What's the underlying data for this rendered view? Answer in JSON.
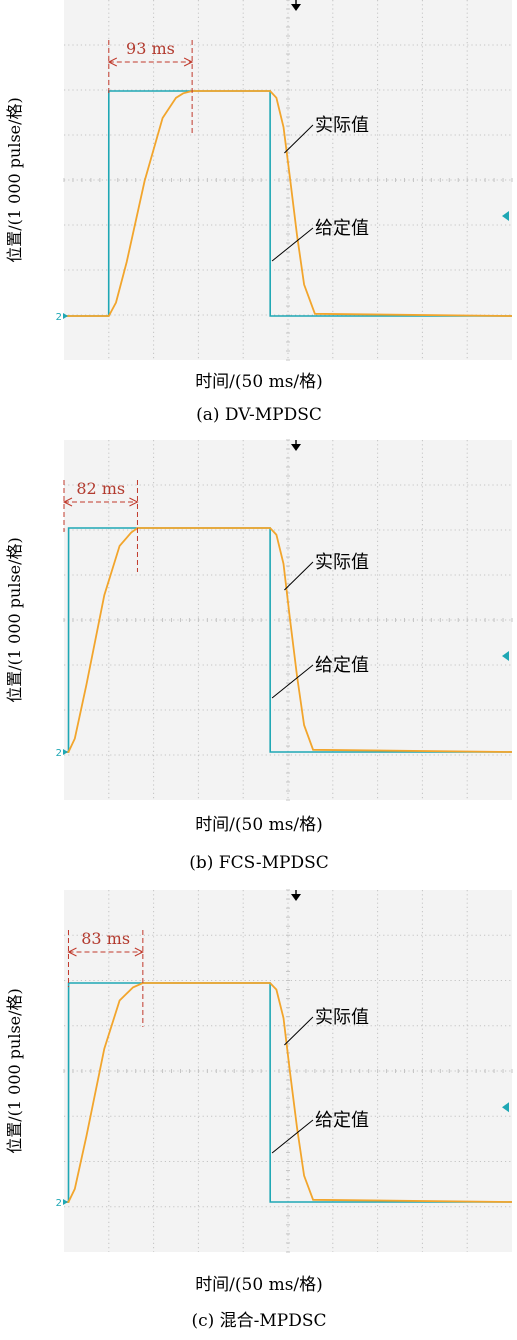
{
  "chart_data": [
    {
      "type": "line",
      "caption": "(a) DV-MPDSC",
      "ylabel": "位置/(1 000 pulse/格)",
      "xlabel": "时间/(50 ms/格)",
      "grid": true,
      "xlim": [
        0,
        500
      ],
      "measurement": {
        "label": "93 ms",
        "start_ms": 50,
        "end_ms": 143
      },
      "series": [
        {
          "name": "给定值",
          "x": [
            0,
            49.9,
            50,
            230,
            230.1,
            500
          ],
          "y": [
            0,
            0,
            5,
            5,
            0,
            0
          ]
        },
        {
          "name": "实际值",
          "x": [
            0,
            50,
            58,
            70,
            90,
            110,
            125,
            133,
            143,
            230,
            237,
            245,
            252,
            260,
            268,
            280,
            500
          ],
          "y": [
            0,
            0,
            0.3,
            1.2,
            3.0,
            4.4,
            4.85,
            4.95,
            5.0,
            5.0,
            4.85,
            4.2,
            3.1,
            1.8,
            0.7,
            0.05,
            0
          ]
        }
      ],
      "annotations": [
        "实际值",
        "给定值"
      ],
      "marker": "2"
    },
    {
      "type": "line",
      "caption": "(b) FCS-MPDSC",
      "ylabel": "位置/(1 000 pulse/格)",
      "xlabel": "时间/(50 ms/格)",
      "grid": true,
      "xlim": [
        0,
        500
      ],
      "measurement": {
        "label": "82 ms",
        "start_ms": 0,
        "end_ms": 82
      },
      "series": [
        {
          "name": "给定值",
          "x": [
            0,
            5,
            5.1,
            230,
            230.1,
            500
          ],
          "y": [
            0,
            0,
            5,
            5,
            0,
            0
          ]
        },
        {
          "name": "实际值",
          "x": [
            0,
            5,
            12,
            25,
            45,
            62,
            75,
            82,
            230,
            237,
            245,
            252,
            260,
            268,
            278,
            500
          ],
          "y": [
            0,
            0,
            0.3,
            1.5,
            3.5,
            4.6,
            4.9,
            5.0,
            5.0,
            4.85,
            4.2,
            3.0,
            1.7,
            0.6,
            0.05,
            0
          ]
        }
      ],
      "annotations": [
        "实际值",
        "给定值"
      ],
      "marker": "2"
    },
    {
      "type": "line",
      "caption": "(c) 混合-MPDSC",
      "ylabel": "位置/(1 000 pulse/格)",
      "xlabel": "时间/(50 ms/格)",
      "grid": true,
      "xlim": [
        0,
        500
      ],
      "measurement": {
        "label": "83 ms",
        "start_ms": 5,
        "end_ms": 88
      },
      "series": [
        {
          "name": "给定值",
          "x": [
            0,
            5,
            5.1,
            230,
            230.1,
            500
          ],
          "y": [
            0,
            0,
            5,
            5,
            0,
            0
          ]
        },
        {
          "name": "实际值",
          "x": [
            0,
            5,
            12,
            25,
            45,
            62,
            77,
            88,
            230,
            237,
            245,
            252,
            260,
            268,
            278,
            500
          ],
          "y": [
            0,
            0,
            0.3,
            1.5,
            3.5,
            4.6,
            4.9,
            5.0,
            5.0,
            4.85,
            4.2,
            3.0,
            1.7,
            0.6,
            0.05,
            0
          ]
        }
      ],
      "annotations": [
        "实际值",
        "给定值"
      ],
      "marker": "2"
    }
  ]
}
